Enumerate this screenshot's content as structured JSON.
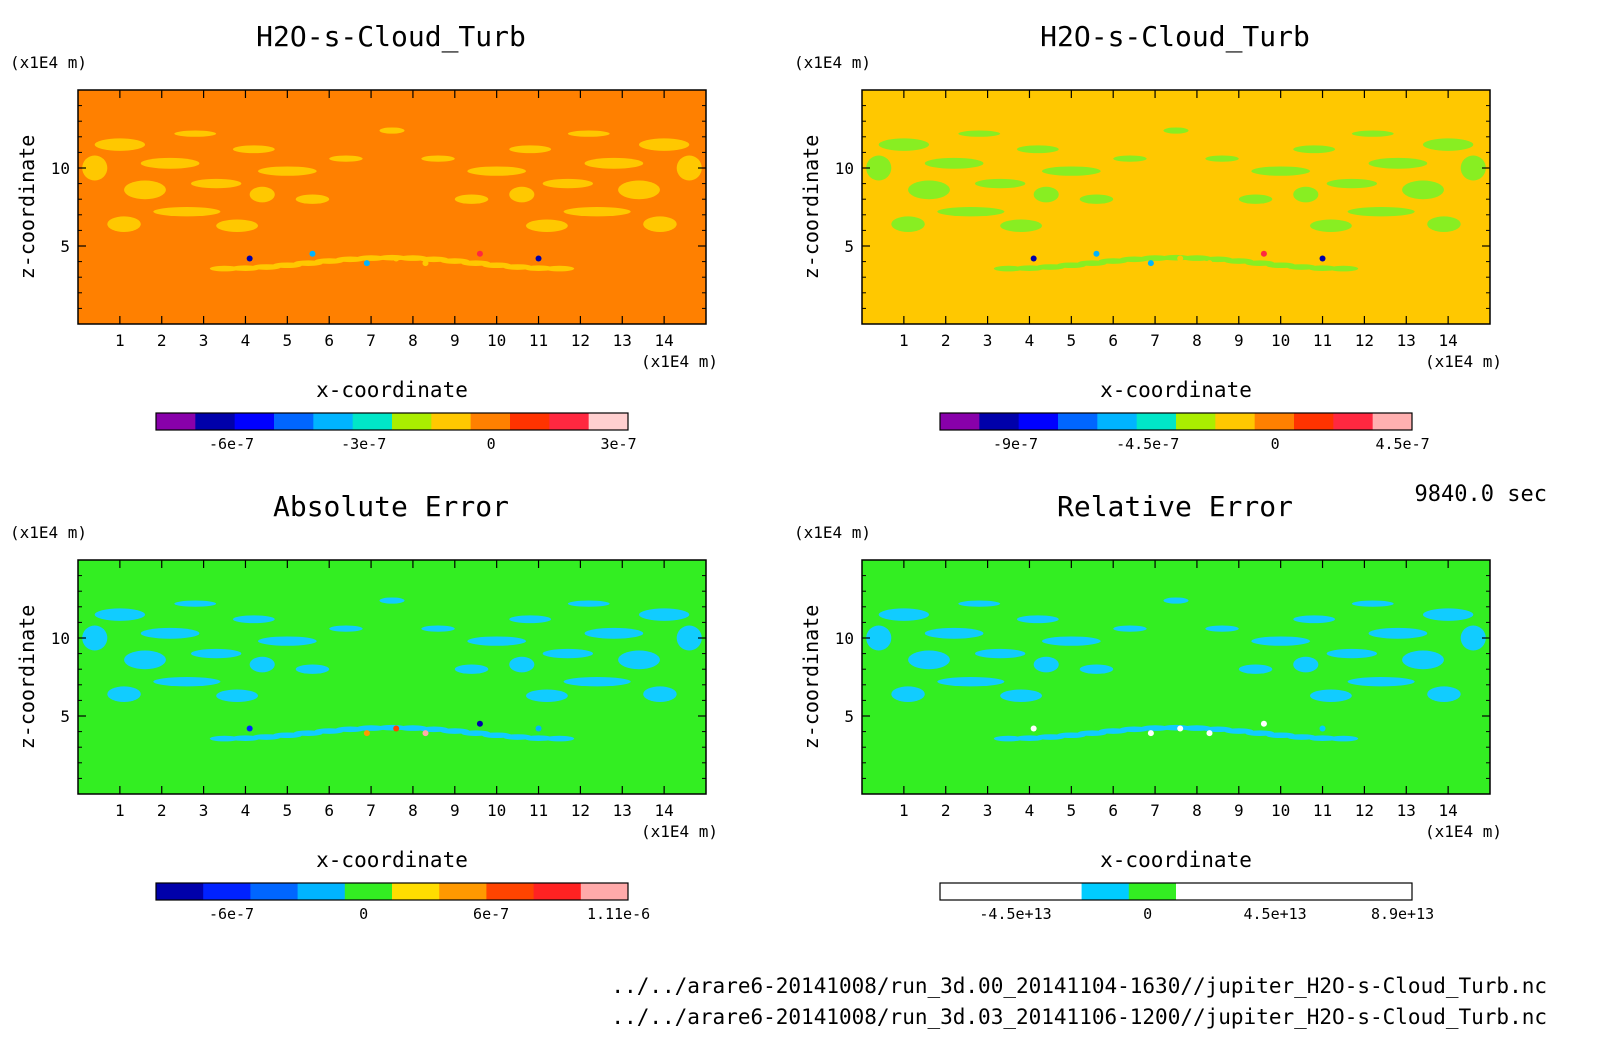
{
  "time_label": "9840.0 sec",
  "files": [
    "../../arare6-20141008/run_3d.00_20141104-1630//jupiter_H2O-s-Cloud_Turb.nc",
    "../../arare6-20141008/run_3d.03_20141106-1200//jupiter_H2O-s-Cloud_Turb.nc"
  ],
  "chart_data": [
    {
      "type": "heatmap",
      "title": "H2O-s-Cloud_Turb",
      "xlabel": "x-coordinate",
      "ylabel": "z-coordinate",
      "x_unit": "(x1E4 m)",
      "y_unit": "(x1E4 m)",
      "xlim": [
        0,
        15
      ],
      "ylim": [
        0,
        15
      ],
      "x_ticks": [
        1,
        2,
        3,
        4,
        5,
        6,
        7,
        8,
        9,
        10,
        11,
        12,
        13,
        14
      ],
      "y_ticks": [
        5,
        10
      ],
      "background": "#ff8000",
      "features": "#ffc800",
      "colorbar": {
        "colors": [
          "#8800aa",
          "#0000aa",
          "#0000ff",
          "#0066ff",
          "#00b4ff",
          "#00e6c8",
          "#aaee00",
          "#ffc800",
          "#ff8000",
          "#ff3300",
          "#ff2840",
          "#ffd0d0"
        ],
        "tick_labels": [
          "-6e-7",
          "-3e-7",
          "0",
          "3e-7"
        ]
      }
    },
    {
      "type": "heatmap",
      "title": "H2O-s-Cloud_Turb",
      "xlabel": "x-coordinate",
      "ylabel": "z-coordinate",
      "x_unit": "(x1E4 m)",
      "y_unit": "(x1E4 m)",
      "xlim": [
        0,
        15
      ],
      "ylim": [
        0,
        15
      ],
      "x_ticks": [
        1,
        2,
        3,
        4,
        5,
        6,
        7,
        8,
        9,
        10,
        11,
        12,
        13,
        14
      ],
      "y_ticks": [
        5,
        10
      ],
      "background": "#ffc800",
      "features": "#88ee22",
      "colorbar": {
        "colors": [
          "#8800aa",
          "#0000aa",
          "#0000ff",
          "#0066ff",
          "#00b4ff",
          "#00e6c8",
          "#aaee00",
          "#ffc800",
          "#ff8000",
          "#ff3300",
          "#ff2840",
          "#ffb0b0"
        ],
        "tick_labels": [
          "-9e-7",
          "-4.5e-7",
          "0",
          "4.5e-7"
        ]
      }
    },
    {
      "type": "heatmap",
      "title": "Absolute Error",
      "xlabel": "x-coordinate",
      "ylabel": "z-coordinate",
      "x_unit": "(x1E4 m)",
      "y_unit": "(x1E4 m)",
      "xlim": [
        0,
        15
      ],
      "ylim": [
        0,
        15
      ],
      "x_ticks": [
        1,
        2,
        3,
        4,
        5,
        6,
        7,
        8,
        9,
        10,
        11,
        12,
        13,
        14
      ],
      "y_ticks": [
        5,
        10
      ],
      "background": "#33ee22",
      "features": "#11ccff",
      "colorbar": {
        "colors": [
          "#0000aa",
          "#0022ff",
          "#0066ff",
          "#00b4ff",
          "#33ee22",
          "#ffdd00",
          "#ff9900",
          "#ff4400",
          "#ff2222",
          "#ffaaaa"
        ],
        "tick_labels": [
          "-6e-7",
          "0",
          "6e-7",
          "1.11e-6"
        ]
      }
    },
    {
      "type": "heatmap",
      "title": "Relative Error",
      "xlabel": "x-coordinate",
      "ylabel": "z-coordinate",
      "x_unit": "(x1E4 m)",
      "y_unit": "(x1E4 m)",
      "xlim": [
        0,
        15
      ],
      "ylim": [
        0,
        15
      ],
      "x_ticks": [
        1,
        2,
        3,
        4,
        5,
        6,
        7,
        8,
        9,
        10,
        11,
        12,
        13,
        14
      ],
      "y_ticks": [
        5,
        10
      ],
      "background": "#33ee22",
      "features": "#11ccff",
      "colorbar": {
        "colors": [
          "#ffffff",
          "#ffffff",
          "#ffffff",
          "#00ccff",
          "#33ee22",
          "#ffffff",
          "#ffffff",
          "#ffffff",
          "#ffffff",
          "#ffffff"
        ],
        "tick_labels": [
          "-4.5e+13",
          "0",
          "4.5e+13",
          "8.9e+13"
        ]
      }
    }
  ]
}
